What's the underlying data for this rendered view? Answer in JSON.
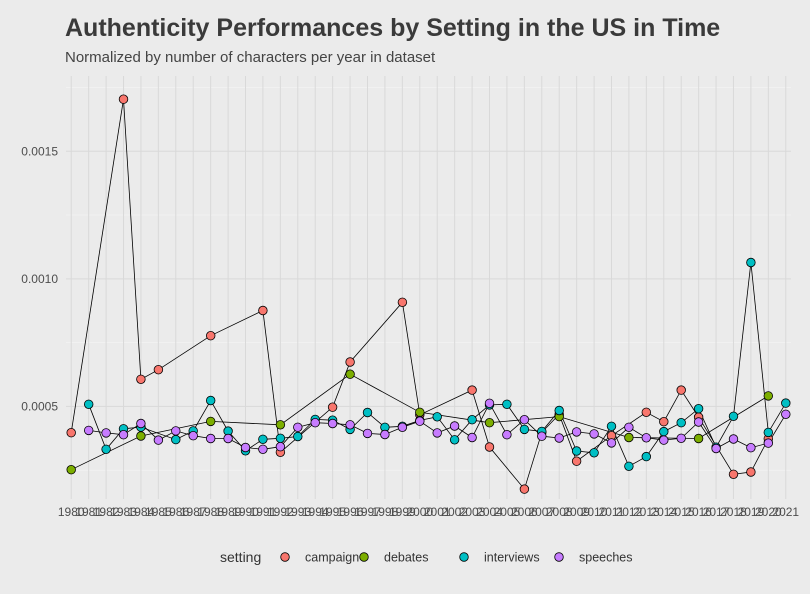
{
  "chart_data": {
    "type": "line",
    "title": "Authenticity Performances by Setting in the US in Time",
    "subtitle": "Normalized by number of characters per year in dataset",
    "xlabel": "",
    "ylabel": "",
    "x_tick_labels": [
      "1980",
      "1981",
      "1982",
      "1983",
      "1984",
      "1985",
      "1986",
      "1987",
      "1988",
      "1989",
      "1990",
      "1991",
      "1992",
      "1993",
      "1994",
      "1995",
      "1996",
      "1997",
      "1998",
      "1999",
      "2000",
      "2001",
      "2002",
      "2003",
      "2004",
      "2005",
      "2006",
      "2007",
      "2008",
      "2009",
      "2010",
      "2011",
      "2012",
      "2013",
      "2014",
      "2015",
      "2016",
      "2017",
      "2018",
      "2019",
      "2020",
      "2021"
    ],
    "y_tick_labels": [
      "0.0005",
      "0.0010",
      "0.0015"
    ],
    "y_ticks": [
      0.0005,
      0.001,
      0.0015
    ],
    "xlim": [
      1979.7,
      2021.3
    ],
    "ylim": [
      0.000137,
      0.001795
    ],
    "grid": true,
    "legend": {
      "title": "setting",
      "position": "bottom",
      "entries": [
        "campaign",
        "debates",
        "interviews",
        "speeches"
      ]
    },
    "colors": {
      "campaign": "#f8766d",
      "debates": "#7cae00",
      "interviews": "#00bfc4",
      "speeches": "#c77cff"
    },
    "series": [
      {
        "name": "campaign",
        "points": [
          [
            1980,
            0.000397
          ],
          [
            1983,
            0.001704
          ],
          [
            1984,
            0.000606
          ],
          [
            1985,
            0.000644
          ],
          [
            1988,
            0.000777
          ],
          [
            1991,
            0.000876
          ],
          [
            1992,
            0.00032
          ],
          [
            1995,
            0.000497
          ],
          [
            1996,
            0.000674
          ],
          [
            1999,
            0.000908
          ],
          [
            2000,
            0.000467
          ],
          [
            2003,
            0.000564
          ],
          [
            2004,
            0.000341
          ],
          [
            2006,
            0.000176
          ],
          [
            2007,
            0.000398
          ],
          [
            2008,
            0.000469
          ],
          [
            2009,
            0.000285
          ],
          [
            2011,
            0.000385
          ],
          [
            2013,
            0.000477
          ],
          [
            2014,
            0.00044
          ],
          [
            2015,
            0.000564
          ],
          [
            2016,
            0.000458
          ],
          [
            2018,
            0.000234
          ],
          [
            2019,
            0.000243
          ],
          [
            2020,
            0.000373
          ]
        ]
      },
      {
        "name": "debates",
        "points": [
          [
            1980,
            0.000252
          ],
          [
            1984,
            0.000384
          ],
          [
            1988,
            0.000441
          ],
          [
            1992,
            0.000428
          ],
          [
            1996,
            0.000626
          ],
          [
            2000,
            0.000477
          ],
          [
            2004,
            0.000436
          ],
          [
            2008,
            0.00046
          ],
          [
            2012,
            0.000378
          ],
          [
            2016,
            0.000374
          ],
          [
            2020,
            0.000541
          ]
        ]
      },
      {
        "name": "interviews",
        "points": [
          [
            1981,
            0.000508
          ],
          [
            1982,
            0.000332
          ],
          [
            1983,
            0.000412
          ],
          [
            1984,
            0.000419
          ],
          [
            1986,
            0.00037
          ],
          [
            1987,
            0.000404
          ],
          [
            1988,
            0.000523
          ],
          [
            1989,
            0.000403
          ],
          [
            1990,
            0.000326
          ],
          [
            1991,
            0.000371
          ],
          [
            1992,
            0.000375
          ],
          [
            1993,
            0.000382
          ],
          [
            1994,
            0.000449
          ],
          [
            1995,
            0.000446
          ],
          [
            1996,
            0.00041
          ],
          [
            1997,
            0.000476
          ],
          [
            1998,
            0.000418
          ],
          [
            1999,
            0.000422
          ],
          [
            2000,
            0.000445
          ],
          [
            2001,
            0.000459
          ],
          [
            2002,
            0.000369
          ],
          [
            2003,
            0.000448
          ],
          [
            2004,
            0.000506
          ],
          [
            2005,
            0.000508
          ],
          [
            2006,
            0.00041
          ],
          [
            2007,
            0.000402
          ],
          [
            2008,
            0.000484
          ],
          [
            2009,
            0.000325
          ],
          [
            2010,
            0.000318
          ],
          [
            2011,
            0.000422
          ],
          [
            2012,
            0.000265
          ],
          [
            2013,
            0.000303
          ],
          [
            2014,
            0.000401
          ],
          [
            2015,
            0.000436
          ],
          [
            2016,
            0.000491
          ],
          [
            2017,
            0.00034
          ],
          [
            2018,
            0.000461
          ],
          [
            2019,
            0.001064
          ],
          [
            2020,
            0.000398
          ],
          [
            2021,
            0.000513
          ]
        ]
      },
      {
        "name": "speeches",
        "points": [
          [
            1981,
            0.000406
          ],
          [
            1982,
            0.000396
          ],
          [
            1983,
            0.000389
          ],
          [
            1984,
            0.000433
          ],
          [
            1985,
            0.000368
          ],
          [
            1986,
            0.000404
          ],
          [
            1987,
            0.000385
          ],
          [
            1988,
            0.000374
          ],
          [
            1989,
            0.000374
          ],
          [
            1990,
            0.000339
          ],
          [
            1991,
            0.000332
          ],
          [
            1992,
            0.000342
          ],
          [
            1993,
            0.000418
          ],
          [
            1994,
            0.000436
          ],
          [
            1995,
            0.000433
          ],
          [
            1996,
            0.000428
          ],
          [
            1997,
            0.000394
          ],
          [
            1998,
            0.00039
          ],
          [
            1999,
            0.000418
          ],
          [
            2000,
            0.000442
          ],
          [
            2001,
            0.000396
          ],
          [
            2002,
            0.000423
          ],
          [
            2003,
            0.000378
          ],
          [
            2004,
            0.000512
          ],
          [
            2005,
            0.000389
          ],
          [
            2006,
            0.000448
          ],
          [
            2007,
            0.000383
          ],
          [
            2008,
            0.000376
          ],
          [
            2009,
            0.0004
          ],
          [
            2010,
            0.000392
          ],
          [
            2011,
            0.000357
          ],
          [
            2012,
            0.000418
          ],
          [
            2013,
            0.000377
          ],
          [
            2014,
            0.000368
          ],
          [
            2015,
            0.000375
          ],
          [
            2016,
            0.000439
          ],
          [
            2017,
            0.000335
          ],
          [
            2018,
            0.000372
          ],
          [
            2019,
            0.000338
          ],
          [
            2020,
            0.000356
          ],
          [
            2021,
            0.000469
          ]
        ]
      }
    ]
  }
}
